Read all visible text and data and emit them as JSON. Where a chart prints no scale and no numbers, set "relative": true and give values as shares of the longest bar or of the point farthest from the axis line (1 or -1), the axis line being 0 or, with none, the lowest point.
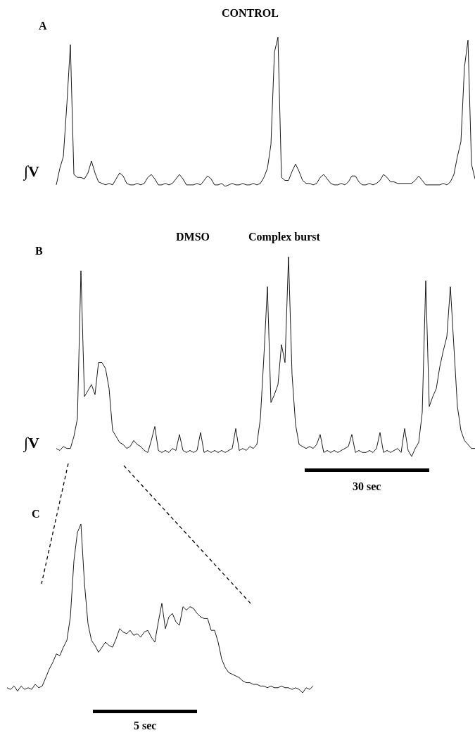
{
  "chart_data": [
    {
      "type": "line",
      "title": "CONTROL",
      "ylabel": "∫V",
      "annotations": [
        "A"
      ],
      "relative": true,
      "tick_labels": false,
      "categories": [
        null,
        null,
        null,
        null,
        null,
        null,
        null,
        null,
        null,
        null,
        null,
        null,
        null,
        null,
        null,
        null,
        null,
        null,
        null,
        null,
        null,
        null,
        null,
        null,
        null,
        null,
        null,
        null,
        null,
        null,
        null,
        null,
        null,
        null,
        null,
        null,
        null,
        null,
        null,
        null,
        null,
        null,
        null,
        null,
        null,
        null,
        null,
        null,
        null,
        null,
        null,
        null,
        null,
        null,
        null,
        null,
        null,
        null,
        null,
        null,
        null,
        null,
        null,
        null,
        null,
        null,
        null,
        null,
        null,
        null,
        null,
        null,
        null,
        null,
        null,
        null,
        null,
        null,
        null,
        null,
        null,
        null,
        null,
        null,
        null,
        null,
        null,
        null,
        null,
        null,
        null,
        null,
        null,
        null,
        null,
        null,
        null,
        null,
        null,
        null,
        null,
        null,
        null,
        null,
        null,
        null,
        null,
        null,
        null,
        null,
        null,
        null,
        null,
        null,
        null,
        null,
        null,
        null,
        null,
        null
      ],
      "series": [
        {
          "color": "#000000",
          "values": [
            0.01,
            0.12,
            0.2,
            0.55,
            0.95,
            0.08,
            0.06,
            0.06,
            0.05,
            0.09,
            0.17,
            0.09,
            0.03,
            0.02,
            0.01,
            0.02,
            0.01,
            0.05,
            0.09,
            0.07,
            0.02,
            0.01,
            0.01,
            0.02,
            0.01,
            0.02,
            0.06,
            0.08,
            0.05,
            0.01,
            0.01,
            0.02,
            0.01,
            0.02,
            0.05,
            0.08,
            0.05,
            0.01,
            0.01,
            0.01,
            0.02,
            0.01,
            0.04,
            0.07,
            0.05,
            0.01,
            0.01,
            0.02,
            0,
            0.01,
            0.02,
            0.01,
            0.01,
            0.02,
            0.01,
            0.01,
            0.02,
            0.01,
            0.02,
            0.06,
            0.12,
            0.28,
            0.9,
            1,
            0.06,
            0.04,
            0.04,
            0.1,
            0.15,
            0.1,
            0.04,
            0.02,
            0.02,
            0.01,
            0.02,
            0.06,
            0.08,
            0.05,
            0.02,
            0.01,
            0.01,
            0.02,
            0.01,
            0.03,
            0.07,
            0.07,
            0.03,
            0.01,
            0.01,
            0.02,
            0.01,
            0.02,
            0.04,
            0.08,
            0.06,
            0.03,
            0.03,
            0.02,
            0.02,
            0.02,
            0.02,
            0.02,
            0.04,
            0.07,
            0.04,
            0.01,
            0.01,
            0.01,
            0.01,
            0.01,
            0.02,
            0.01,
            0.03,
            0.08,
            0.2,
            0.3,
            0.8,
            0.98,
            0.15,
            0.05
          ]
        }
      ]
    },
    {
      "type": "line",
      "title": "DMSO",
      "subtitle": "Complex burst",
      "ylabel": "∫V",
      "annotations": [
        "B",
        "30 sec"
      ],
      "relative": true,
      "tick_labels": false,
      "categories": [
        null,
        null,
        null,
        null,
        null,
        null,
        null,
        null,
        null,
        null,
        null,
        null,
        null,
        null,
        null,
        null,
        null,
        null,
        null,
        null,
        null,
        null,
        null,
        null,
        null,
        null,
        null,
        null,
        null,
        null,
        null,
        null,
        null,
        null,
        null,
        null,
        null,
        null,
        null,
        null,
        null,
        null,
        null,
        null,
        null,
        null,
        null,
        null,
        null,
        null,
        null,
        null,
        null,
        null,
        null,
        null,
        null,
        null,
        null,
        null,
        null,
        null,
        null,
        null,
        null,
        null,
        null,
        null,
        null,
        null,
        null,
        null,
        null,
        null,
        null,
        null,
        null,
        null,
        null,
        null,
        null,
        null,
        null,
        null,
        null,
        null,
        null,
        null,
        null,
        null,
        null,
        null,
        null,
        null,
        null,
        null,
        null,
        null,
        null,
        null,
        null,
        null,
        null,
        null,
        null,
        null,
        null,
        null,
        null,
        null,
        null,
        null,
        null,
        null,
        null,
        null,
        null,
        null,
        null,
        null
      ],
      "series": [
        {
          "color": "#000000",
          "values": [
            0.04,
            0.03,
            0.05,
            0.04,
            0.04,
            0.1,
            0.19,
            0.93,
            0.3,
            0.33,
            0.36,
            0.31,
            0.47,
            0.47,
            0.44,
            0.34,
            0.13,
            0.1,
            0.07,
            0.06,
            0.04,
            0.05,
            0.08,
            0.06,
            0.05,
            0.03,
            0.02,
            0.08,
            0.15,
            0.03,
            0.02,
            0.03,
            0.02,
            0.04,
            0.03,
            0.11,
            0.03,
            0.02,
            0.03,
            0.02,
            0.03,
            0.12,
            0.02,
            0.03,
            0.02,
            0.03,
            0.02,
            0.03,
            0.02,
            0.03,
            0.04,
            0.14,
            0.03,
            0.04,
            0.03,
            0.05,
            0.04,
            0.06,
            0.19,
            0.5,
            0.85,
            0.27,
            0.31,
            0.36,
            0.56,
            0.47,
            1,
            0.41,
            0.16,
            0.06,
            0.05,
            0.04,
            0.05,
            0.04,
            0.06,
            0.11,
            0.02,
            0.03,
            0.02,
            0.03,
            0.02,
            0.03,
            0.04,
            0.05,
            0.11,
            0.02,
            0.03,
            0.02,
            0.02,
            0.03,
            0.02,
            0.04,
            0.12,
            0.02,
            0.03,
            0.02,
            0.03,
            0.04,
            0.02,
            0.14,
            0.03,
            0,
            0.04,
            0.07,
            0.22,
            0.88,
            0.25,
            0.3,
            0.34,
            0.45,
            0.53,
            0.6,
            0.85,
            0.55,
            0.25,
            0.13,
            0.08,
            0.06,
            0.04,
            0.04
          ]
        }
      ]
    },
    {
      "type": "line",
      "annotations": [
        "C",
        "5 sec"
      ],
      "relative": true,
      "tick_labels": false,
      "categories": [
        null,
        null,
        null,
        null,
        null,
        null,
        null,
        null,
        null,
        null,
        null,
        null,
        null,
        null,
        null,
        null,
        null,
        null,
        null,
        null,
        null,
        null,
        null,
        null,
        null,
        null,
        null,
        null,
        null,
        null,
        null,
        null,
        null,
        null,
        null,
        null,
        null,
        null,
        null,
        null,
        null,
        null,
        null,
        null,
        null,
        null,
        null,
        null,
        null,
        null,
        null,
        null,
        null,
        null,
        null,
        null,
        null,
        null,
        null,
        null,
        null,
        null,
        null,
        null,
        null,
        null,
        null,
        null,
        null,
        null,
        null,
        null,
        null,
        null,
        null,
        null,
        null,
        null,
        null,
        null,
        null,
        null,
        null,
        null,
        null,
        null,
        null,
        null
      ],
      "series": [
        {
          "color": "#000000",
          "values": [
            0.03,
            0.02,
            0.04,
            0.01,
            0.04,
            0.02,
            0.03,
            0.02,
            0.05,
            0.03,
            0.04,
            0.09,
            0.14,
            0.18,
            0.23,
            0.22,
            0.27,
            0.31,
            0.45,
            0.78,
            0.95,
            1,
            0.65,
            0.41,
            0.31,
            0.28,
            0.24,
            0.27,
            0.3,
            0.28,
            0.27,
            0.32,
            0.38,
            0.36,
            0.35,
            0.37,
            0.34,
            0.35,
            0.33,
            0.36,
            0.37,
            0.33,
            0.3,
            0.42,
            0.53,
            0.38,
            0.45,
            0.47,
            0.42,
            0.4,
            0.51,
            0.49,
            0.51,
            0.5,
            0.47,
            0.45,
            0.44,
            0.44,
            0.37,
            0.37,
            0.3,
            0.2,
            0.15,
            0.12,
            0.11,
            0.1,
            0.09,
            0.07,
            0.06,
            0.06,
            0.05,
            0.05,
            0.04,
            0.04,
            0.03,
            0.04,
            0.03,
            0.03,
            0.04,
            0.03,
            0.03,
            0.02,
            0.03,
            0.02,
            0,
            0.03,
            0.02,
            0.04
          ]
        }
      ]
    }
  ]
}
